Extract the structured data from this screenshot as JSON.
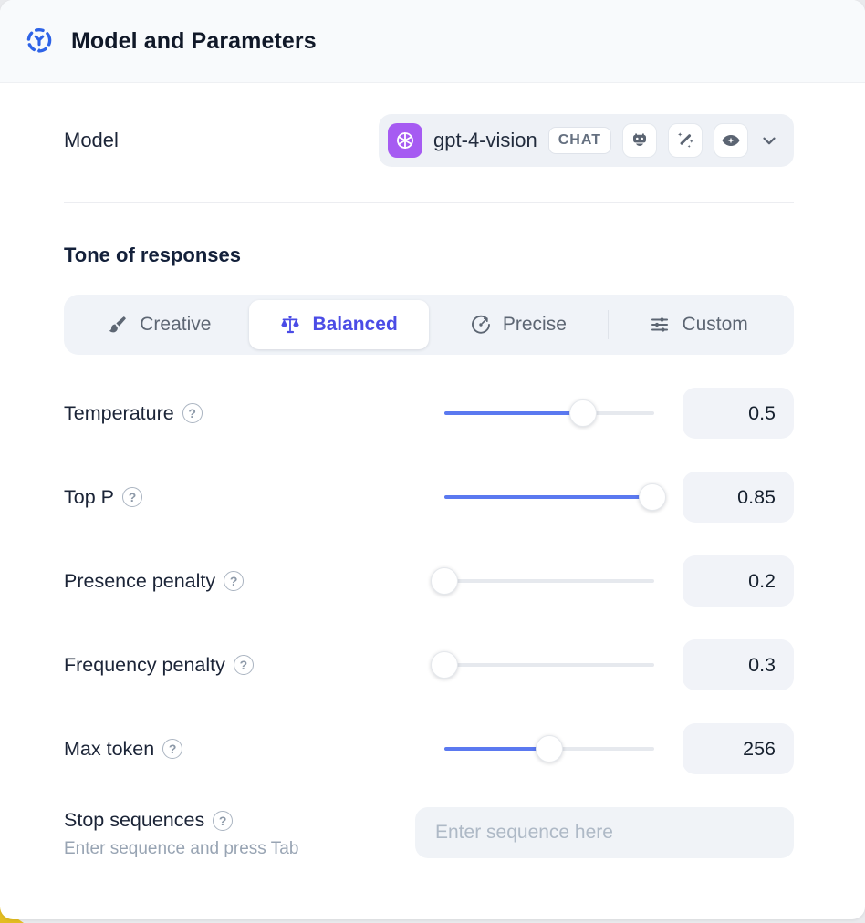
{
  "header": {
    "title": "Model and Parameters",
    "icon": "model-hub-icon"
  },
  "model_row": {
    "label": "Model",
    "selected_model": "gpt-4-vision",
    "provider_icon": "openai-logo",
    "type_badge": "CHAT",
    "capabilities": [
      {
        "icon": "bot-icon"
      },
      {
        "icon": "magic-wand-icon"
      },
      {
        "icon": "vision-eye-icon"
      }
    ]
  },
  "tone": {
    "heading": "Tone of responses",
    "options": [
      {
        "label": "Creative",
        "icon": "paintbrush-icon",
        "selected": false
      },
      {
        "label": "Balanced",
        "icon": "balance-scale-icon",
        "selected": true
      },
      {
        "label": "Precise",
        "icon": "target-icon",
        "selected": false
      },
      {
        "label": "Custom",
        "icon": "sliders-icon",
        "selected": false
      }
    ]
  },
  "parameters": [
    {
      "label": "Temperature",
      "value": "0.5",
      "fill_percent": 66
    },
    {
      "label": "Top P",
      "value": "0.85",
      "fill_percent": 99
    },
    {
      "label": "Presence penalty",
      "value": "0.2",
      "fill_percent": 0
    },
    {
      "label": "Frequency penalty",
      "value": "0.3",
      "fill_percent": 0
    },
    {
      "label": "Max token",
      "value": "256",
      "fill_percent": 50
    }
  ],
  "stop_sequences": {
    "label": "Stop sequences",
    "hint": "Enter sequence and press Tab",
    "placeholder": "Enter sequence here"
  },
  "help_glyph": "?",
  "colors": {
    "accent_slider": "#5b79f0",
    "selected_tab_text": "#4b4ce6",
    "provider_badge_bg": "#a65bf2",
    "header_icon_blue": "#2e63e7"
  }
}
